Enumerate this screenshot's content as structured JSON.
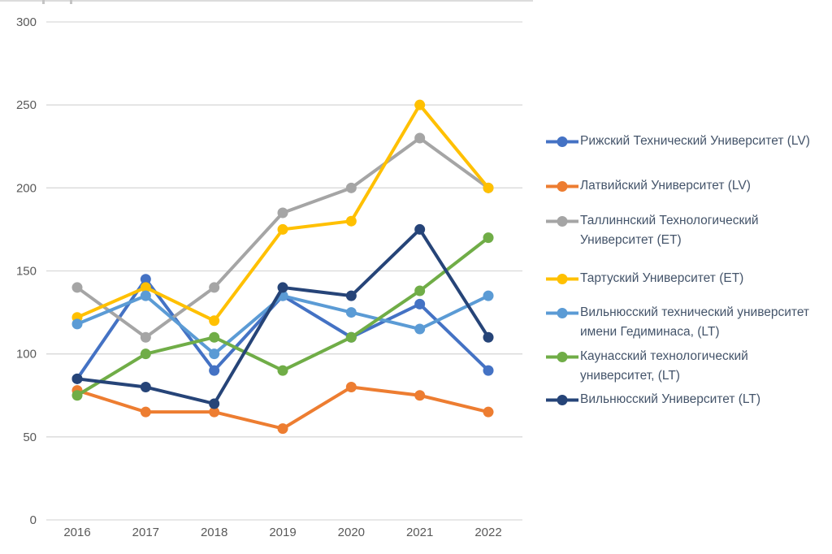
{
  "chart_data": {
    "type": "line",
    "title": "",
    "xlabel": "",
    "ylabel": "",
    "x": [
      "2016",
      "2017",
      "2018",
      "2019",
      "2020",
      "2021",
      "2022"
    ],
    "ylim": [
      0,
      300
    ],
    "ytick_step": 50,
    "grid": true,
    "legend_position": "right",
    "series": [
      {
        "name": "Рижский Технический Университет (LV)",
        "color": "#4472C4",
        "values": [
          85,
          145,
          90,
          135,
          110,
          130,
          90
        ]
      },
      {
        "name": "Латвийский Университет (LV)",
        "color": "#ED7D31",
        "values": [
          78,
          65,
          65,
          55,
          80,
          75,
          65
        ]
      },
      {
        "name": "Таллиннский Технологический Университет (ET)",
        "color": "#A5A5A5",
        "values": [
          140,
          110,
          140,
          185,
          200,
          230,
          200
        ]
      },
      {
        "name": "Тартуский Университет (ET)",
        "color": "#FFC000",
        "values": [
          122,
          140,
          120,
          175,
          180,
          250,
          200
        ]
      },
      {
        "name": "Вильнюсский технический университет имени Гедиминаса, (LT)",
        "color": "#5B9BD5",
        "values": [
          118,
          135,
          100,
          135,
          125,
          115,
          135
        ]
      },
      {
        "name": "Каунасский технологический университет, (LT)",
        "color": "#70AD47",
        "values": [
          75,
          100,
          110,
          90,
          110,
          138,
          170
        ]
      },
      {
        "name": "Вильнюсский Университет (LT)",
        "color": "#264478",
        "values": [
          85,
          80,
          70,
          140,
          135,
          175,
          110
        ]
      }
    ]
  },
  "y_axis": {
    "ticks": [
      300,
      250,
      200,
      150,
      100,
      50,
      0
    ]
  },
  "x_axis": {
    "ticks": [
      "2016",
      "2017",
      "2018",
      "2019",
      "2020",
      "2021",
      "2022"
    ]
  },
  "legend": {
    "items": [
      {
        "label": "Рижский Технический Университет (LV)",
        "color": "#4472C4"
      },
      {
        "label": "Латвийский Университет (LV)",
        "color": "#ED7D31"
      },
      {
        "label": "Таллиннский Технологический\nУниверситет (ET)",
        "color": "#A5A5A5"
      },
      {
        "label": "Тартуский Университет (ET)",
        "color": "#FFC000"
      },
      {
        "label": "Вильнюсский технический университет\nимени Гедиминаса, (LT)",
        "color": "#5B9BD5"
      },
      {
        "label": "Каунасский технологический\nуниверситет, (LT)",
        "color": "#70AD47"
      },
      {
        "label": "Вильнюсский Университет (LT)",
        "color": "#264478"
      }
    ]
  },
  "colors": {
    "gridline": "#d9d9d9",
    "axis_label": "#595959",
    "legend_text": "#44546A",
    "background": "#ffffff"
  }
}
